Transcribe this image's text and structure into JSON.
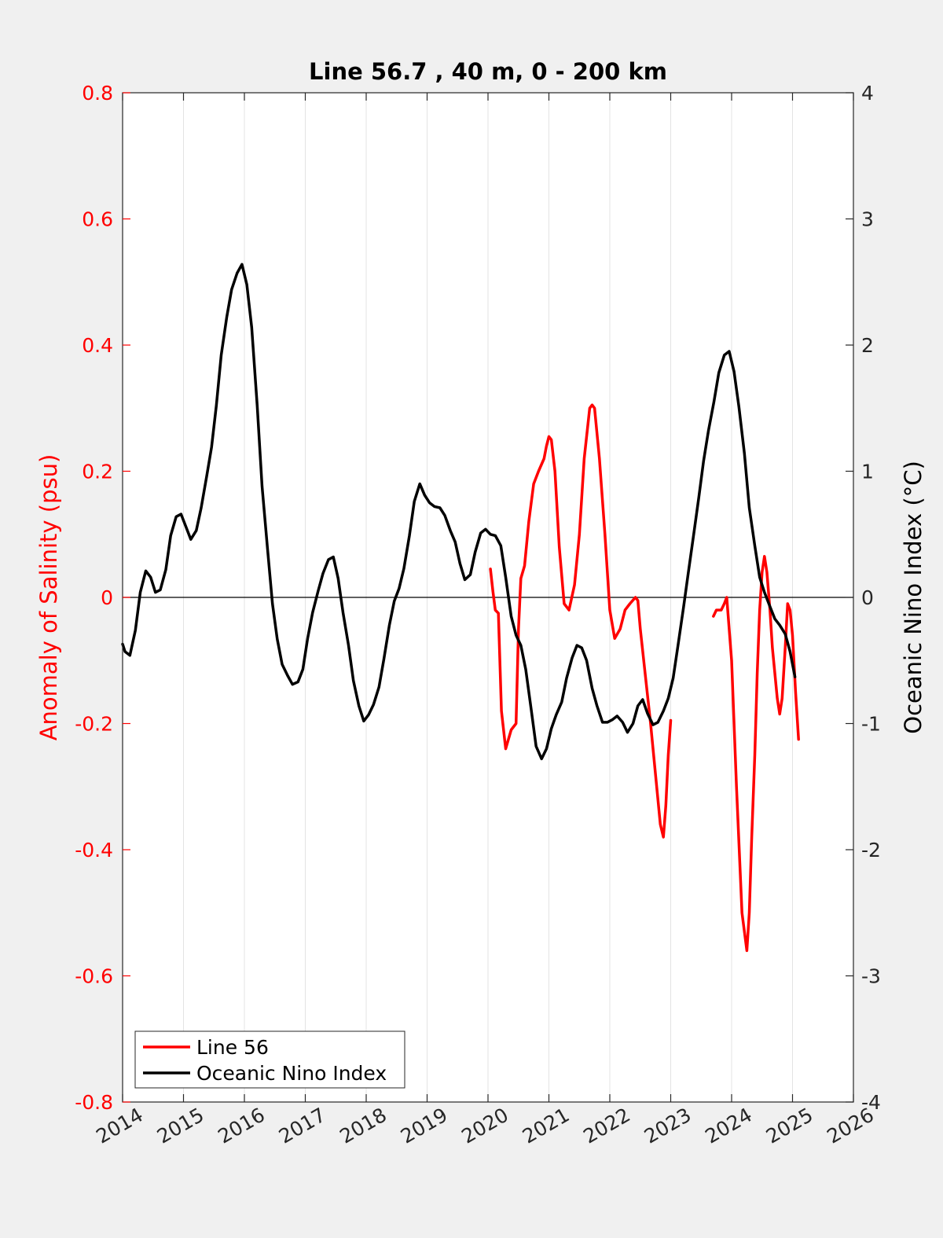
{
  "chart_data": {
    "type": "line",
    "title": "Line 56.7 , 40 m, 0 - 200 km",
    "ylabel_left": "Anomaly of Salinity (psu)",
    "ylabel_right": "Oceanic Nino Index (°C)",
    "xlabel": "",
    "xlim": [
      2014,
      2026
    ],
    "ylim_left": [
      -0.8,
      0.8
    ],
    "ylim_right": [
      -4,
      4
    ],
    "x_ticks": [
      "2014",
      "2015",
      "2016",
      "2017",
      "2018",
      "2019",
      "2020",
      "2021",
      "2022",
      "2023",
      "2024",
      "2025",
      "2026"
    ],
    "y_left_ticks": [
      "-0.8",
      "-0.6",
      "-0.4",
      "-0.2",
      "0",
      "0.2",
      "0.4",
      "0.6",
      "0.8"
    ],
    "y_right_ticks": [
      "-4",
      "-3",
      "-2",
      "-1",
      "0",
      "1",
      "2",
      "3",
      "4"
    ],
    "grid": "vertical",
    "legend_position": "bottom-left",
    "colors": {
      "salinity": "#ff0000",
      "oni": "#000000",
      "left_axis": "#ff0000",
      "right_axis": "#000000"
    },
    "series": [
      {
        "name": "Line 56",
        "axis": "left",
        "color": "#ff0000",
        "segments": [
          [
            [
              2020.04,
              0.045
            ],
            [
              2020.08,
              0.01
            ],
            [
              2020.12,
              -0.02
            ],
            [
              2020.17,
              -0.025
            ],
            [
              2020.22,
              -0.18
            ],
            [
              2020.29,
              -0.24
            ],
            [
              2020.38,
              -0.21
            ],
            [
              2020.46,
              -0.2
            ],
            [
              2020.5,
              -0.05
            ],
            [
              2020.54,
              0.03
            ],
            [
              2020.6,
              0.05
            ],
            [
              2020.67,
              0.12
            ],
            [
              2020.75,
              0.18
            ],
            [
              2020.83,
              0.2
            ],
            [
              2020.92,
              0.22
            ],
            [
              2020.96,
              0.24
            ],
            [
              2021.0,
              0.255
            ],
            [
              2021.04,
              0.25
            ],
            [
              2021.1,
              0.2
            ],
            [
              2021.17,
              0.08
            ],
            [
              2021.25,
              -0.01
            ],
            [
              2021.33,
              -0.02
            ],
            [
              2021.42,
              0.02
            ],
            [
              2021.5,
              0.1
            ],
            [
              2021.58,
              0.22
            ],
            [
              2021.67,
              0.3
            ],
            [
              2021.71,
              0.305
            ],
            [
              2021.75,
              0.3
            ],
            [
              2021.83,
              0.22
            ],
            [
              2021.92,
              0.1
            ],
            [
              2022.0,
              -0.02
            ],
            [
              2022.08,
              -0.065
            ],
            [
              2022.17,
              -0.05
            ],
            [
              2022.25,
              -0.02
            ],
            [
              2022.33,
              -0.01
            ],
            [
              2022.42,
              0.0
            ],
            [
              2022.46,
              -0.005
            ],
            [
              2022.5,
              -0.05
            ],
            [
              2022.58,
              -0.12
            ],
            [
              2022.67,
              -0.2
            ],
            [
              2022.75,
              -0.28
            ],
            [
              2022.83,
              -0.36
            ],
            [
              2022.88,
              -0.38
            ],
            [
              2022.92,
              -0.33
            ],
            [
              2022.96,
              -0.25
            ],
            [
              2023.0,
              -0.195
            ]
          ],
          [
            [
              2023.7,
              -0.03
            ],
            [
              2023.75,
              -0.02
            ],
            [
              2023.83,
              -0.02
            ],
            [
              2023.88,
              -0.01
            ],
            [
              2023.92,
              0.0
            ],
            [
              2023.96,
              -0.05
            ],
            [
              2024.0,
              -0.1
            ],
            [
              2024.08,
              -0.3
            ],
            [
              2024.17,
              -0.5
            ],
            [
              2024.25,
              -0.56
            ],
            [
              2024.29,
              -0.5
            ],
            [
              2024.33,
              -0.38
            ],
            [
              2024.38,
              -0.25
            ],
            [
              2024.42,
              -0.12
            ],
            [
              2024.46,
              -0.02
            ],
            [
              2024.5,
              0.04
            ],
            [
              2024.54,
              0.065
            ],
            [
              2024.58,
              0.04
            ],
            [
              2024.63,
              -0.02
            ],
            [
              2024.67,
              -0.08
            ],
            [
              2024.75,
              -0.16
            ],
            [
              2024.79,
              -0.185
            ],
            [
              2024.83,
              -0.16
            ],
            [
              2024.88,
              -0.08
            ],
            [
              2024.92,
              -0.01
            ],
            [
              2024.96,
              -0.02
            ],
            [
              2025.0,
              -0.06
            ],
            [
              2025.05,
              -0.15
            ],
            [
              2025.1,
              -0.225
            ]
          ]
        ]
      },
      {
        "name": "Oceanic Nino Index",
        "axis": "right",
        "color": "#000000",
        "segments": [
          [
            [
              2014.0,
              -0.37
            ],
            [
              2014.04,
              -0.43
            ],
            [
              2014.12,
              -0.46
            ],
            [
              2014.21,
              -0.26
            ],
            [
              2014.29,
              0.04
            ],
            [
              2014.38,
              0.21
            ],
            [
              2014.46,
              0.16
            ],
            [
              2014.54,
              0.04
            ],
            [
              2014.62,
              0.06
            ],
            [
              2014.71,
              0.22
            ],
            [
              2014.79,
              0.49
            ],
            [
              2014.88,
              0.64
            ],
            [
              2014.96,
              0.66
            ],
            [
              2015.04,
              0.56
            ],
            [
              2015.12,
              0.46
            ],
            [
              2015.21,
              0.53
            ],
            [
              2015.29,
              0.71
            ],
            [
              2015.38,
              0.96
            ],
            [
              2015.46,
              1.19
            ],
            [
              2015.54,
              1.52
            ],
            [
              2015.62,
              1.92
            ],
            [
              2015.71,
              2.22
            ],
            [
              2015.79,
              2.44
            ],
            [
              2015.88,
              2.57
            ],
            [
              2015.96,
              2.64
            ],
            [
              2016.04,
              2.48
            ],
            [
              2016.12,
              2.14
            ],
            [
              2016.21,
              1.52
            ],
            [
              2016.29,
              0.88
            ],
            [
              2016.38,
              0.38
            ],
            [
              2016.46,
              -0.05
            ],
            [
              2016.54,
              -0.33
            ],
            [
              2016.62,
              -0.53
            ],
            [
              2016.71,
              -0.62
            ],
            [
              2016.79,
              -0.69
            ],
            [
              2016.88,
              -0.67
            ],
            [
              2016.96,
              -0.57
            ],
            [
              2017.04,
              -0.32
            ],
            [
              2017.12,
              -0.12
            ],
            [
              2017.21,
              0.05
            ],
            [
              2017.29,
              0.19
            ],
            [
              2017.38,
              0.3
            ],
            [
              2017.46,
              0.32
            ],
            [
              2017.54,
              0.15
            ],
            [
              2017.62,
              -0.12
            ],
            [
              2017.71,
              -0.38
            ],
            [
              2017.79,
              -0.66
            ],
            [
              2017.88,
              -0.86
            ],
            [
              2017.96,
              -0.98
            ],
            [
              2018.04,
              -0.93
            ],
            [
              2018.12,
              -0.85
            ],
            [
              2018.21,
              -0.71
            ],
            [
              2018.29,
              -0.49
            ],
            [
              2018.38,
              -0.22
            ],
            [
              2018.46,
              -0.03
            ],
            [
              2018.54,
              0.07
            ],
            [
              2018.62,
              0.23
            ],
            [
              2018.71,
              0.49
            ],
            [
              2018.79,
              0.76
            ],
            [
              2018.88,
              0.9
            ],
            [
              2018.96,
              0.81
            ],
            [
              2019.04,
              0.75
            ],
            [
              2019.12,
              0.72
            ],
            [
              2019.21,
              0.71
            ],
            [
              2019.29,
              0.65
            ],
            [
              2019.38,
              0.53
            ],
            [
              2019.46,
              0.44
            ],
            [
              2019.54,
              0.27
            ],
            [
              2019.62,
              0.14
            ],
            [
              2019.71,
              0.18
            ],
            [
              2019.79,
              0.36
            ],
            [
              2019.88,
              0.51
            ],
            [
              2019.96,
              0.54
            ],
            [
              2020.04,
              0.5
            ],
            [
              2020.12,
              0.49
            ],
            [
              2020.21,
              0.41
            ],
            [
              2020.29,
              0.16
            ],
            [
              2020.38,
              -0.15
            ],
            [
              2020.46,
              -0.3
            ],
            [
              2020.54,
              -0.38
            ],
            [
              2020.62,
              -0.57
            ],
            [
              2020.71,
              -0.89
            ],
            [
              2020.79,
              -1.18
            ],
            [
              2020.88,
              -1.28
            ],
            [
              2020.96,
              -1.2
            ],
            [
              2021.04,
              -1.04
            ],
            [
              2021.12,
              -0.93
            ],
            [
              2021.21,
              -0.83
            ],
            [
              2021.29,
              -0.64
            ],
            [
              2021.38,
              -0.48
            ],
            [
              2021.46,
              -0.38
            ],
            [
              2021.54,
              -0.4
            ],
            [
              2021.62,
              -0.5
            ],
            [
              2021.71,
              -0.72
            ],
            [
              2021.79,
              -0.86
            ],
            [
              2021.88,
              -0.99
            ],
            [
              2021.96,
              -0.99
            ],
            [
              2022.04,
              -0.97
            ],
            [
              2022.12,
              -0.94
            ],
            [
              2022.21,
              -0.99
            ],
            [
              2022.29,
              -1.07
            ],
            [
              2022.38,
              -1.0
            ],
            [
              2022.46,
              -0.86
            ],
            [
              2022.54,
              -0.81
            ],
            [
              2022.62,
              -0.92
            ],
            [
              2022.71,
              -1.01
            ],
            [
              2022.79,
              -0.99
            ],
            [
              2022.88,
              -0.9
            ],
            [
              2022.96,
              -0.8
            ],
            [
              2023.04,
              -0.64
            ],
            [
              2023.12,
              -0.38
            ],
            [
              2023.21,
              -0.08
            ],
            [
              2023.29,
              0.2
            ],
            [
              2023.38,
              0.51
            ],
            [
              2023.46,
              0.79
            ],
            [
              2023.54,
              1.08
            ],
            [
              2023.62,
              1.32
            ],
            [
              2023.71,
              1.55
            ],
            [
              2023.79,
              1.78
            ],
            [
              2023.88,
              1.92
            ],
            [
              2023.96,
              1.95
            ],
            [
              2024.04,
              1.79
            ],
            [
              2024.12,
              1.51
            ],
            [
              2024.21,
              1.14
            ],
            [
              2024.29,
              0.71
            ],
            [
              2024.38,
              0.41
            ],
            [
              2024.46,
              0.16
            ],
            [
              2024.54,
              0.04
            ],
            [
              2024.62,
              -0.06
            ],
            [
              2024.71,
              -0.17
            ],
            [
              2024.79,
              -0.22
            ],
            [
              2024.88,
              -0.29
            ],
            [
              2024.96,
              -0.43
            ],
            [
              2025.04,
              -0.63
            ]
          ]
        ]
      }
    ]
  }
}
